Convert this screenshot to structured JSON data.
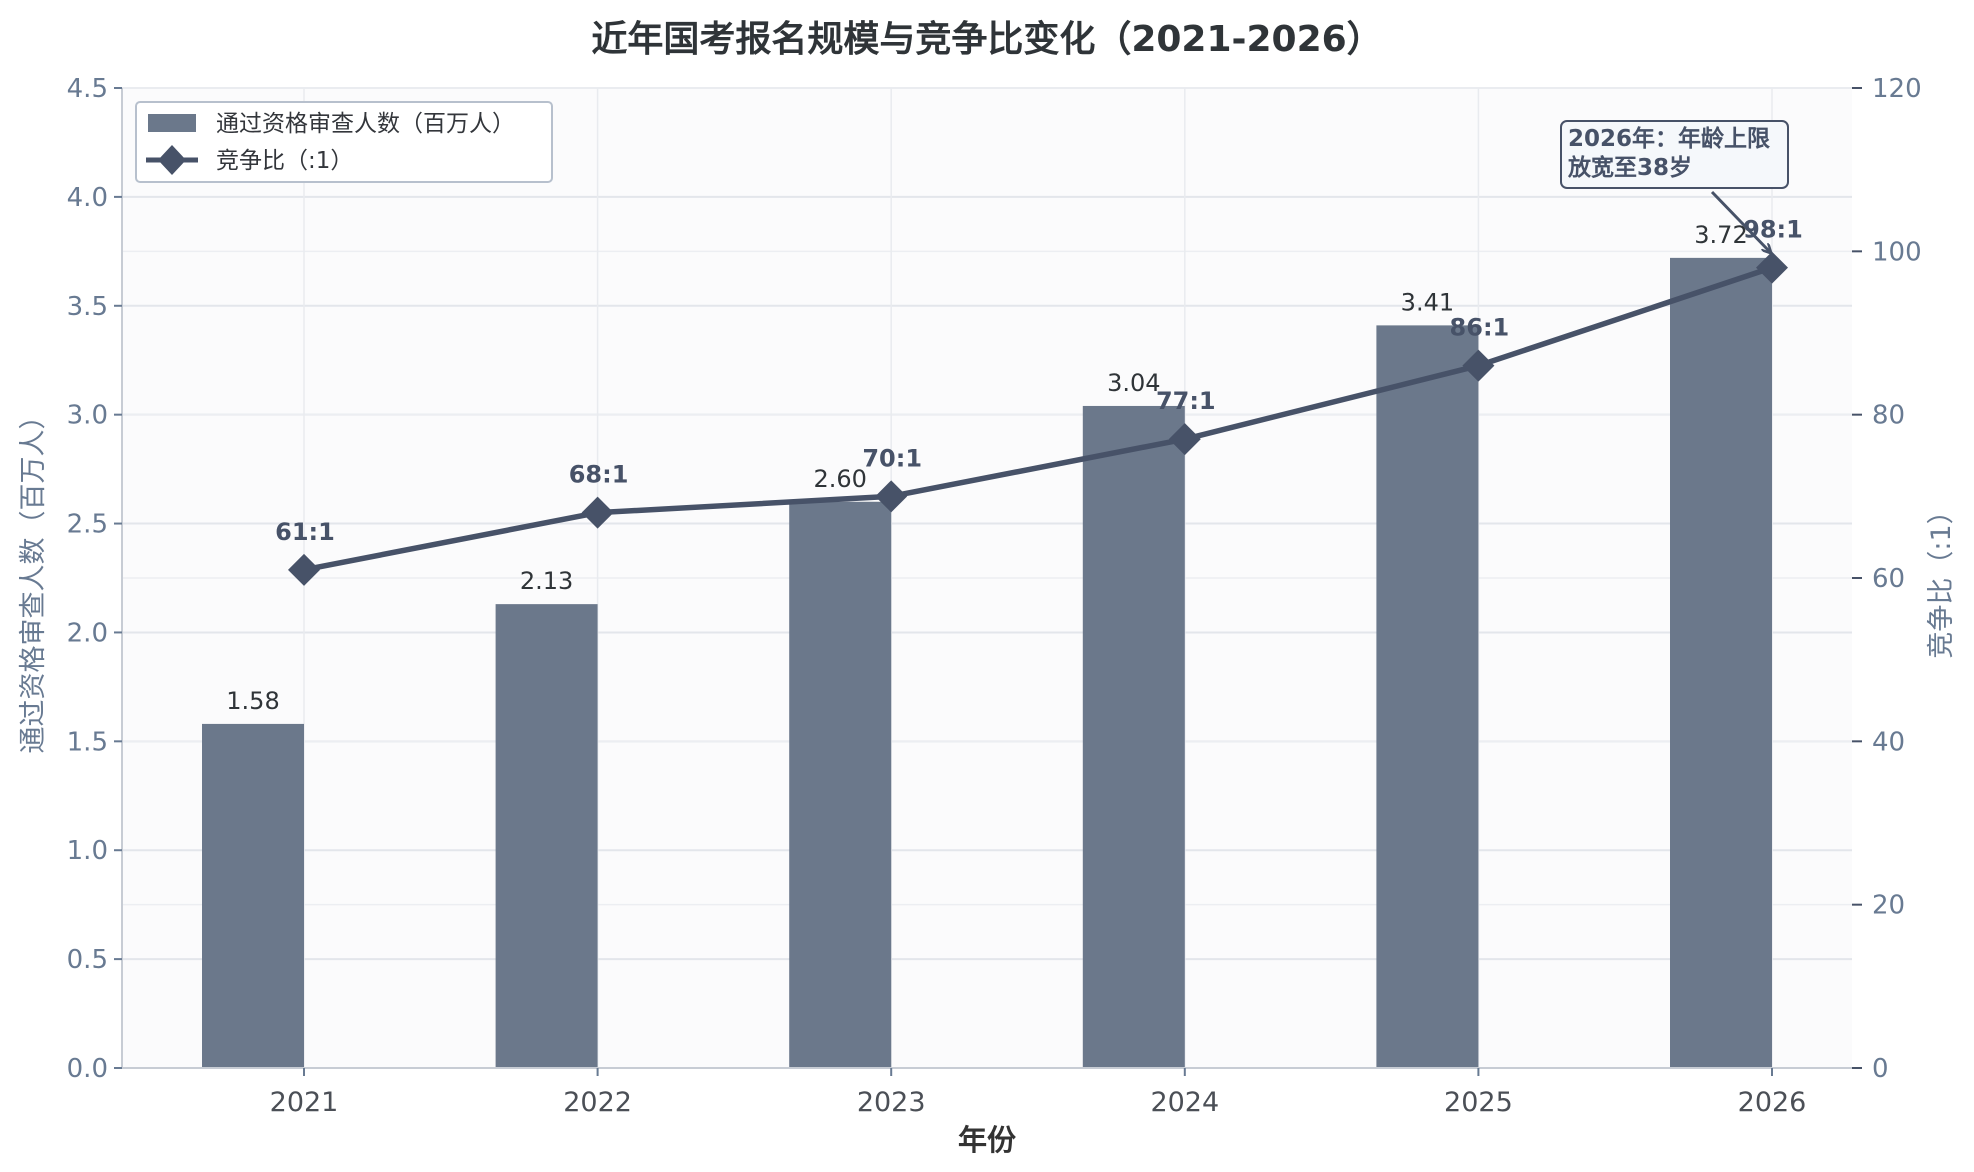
{
  "chart_data": {
    "type": "bar",
    "title": "近年国考报名规模与竞争比变化（2021-2026）",
    "xlabel": "年份",
    "ylabel": "通过资格审查人数（百万人）",
    "y2label": "竞争比（:1）",
    "categories": [
      "2021",
      "2022",
      "2023",
      "2024",
      "2025",
      "2026"
    ],
    "ylim": [
      0,
      4.5
    ],
    "y2lim": [
      0,
      120
    ],
    "yticks": [
      "0.0",
      "0.5",
      "1.0",
      "1.5",
      "2.0",
      "2.5",
      "3.0",
      "3.5",
      "4.0",
      "4.5"
    ],
    "y2ticks": [
      "0",
      "20",
      "40",
      "60",
      "80",
      "100",
      "120"
    ],
    "grid": true,
    "legend_position": "top-left",
    "series": [
      {
        "name": "通过资格审查人数（百万人）",
        "type": "bar",
        "axis": "left",
        "color": "#6b788b",
        "values": [
          1.58,
          2.13,
          2.6,
          3.04,
          3.41,
          3.72
        ],
        "labels": [
          "1.58",
          "2.13",
          "2.60",
          "3.04",
          "3.41",
          "3.72"
        ]
      },
      {
        "name": "竞争比（:1）",
        "type": "line",
        "axis": "right",
        "color": "#475268",
        "marker": "diamond",
        "values": [
          61,
          68,
          70,
          77,
          86,
          98
        ],
        "labels": [
          "61:1",
          "68:1",
          "70:1",
          "77:1",
          "86:1",
          "98:1"
        ]
      }
    ],
    "annotation": {
      "lines": [
        "2026年：年龄上限",
        "放宽至38岁"
      ],
      "target_category": "2026"
    }
  }
}
